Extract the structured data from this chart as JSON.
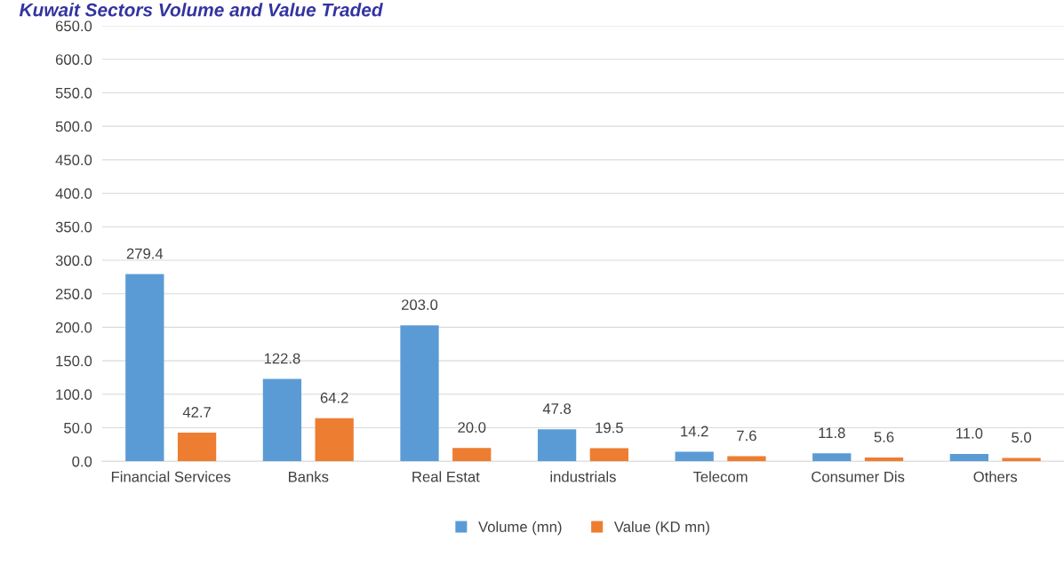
{
  "chart_data": {
    "type": "bar",
    "title": "Kuwait Sectors Volume and Value Traded",
    "categories": [
      "Financial Services",
      "Banks",
      "Real Estat",
      "industrials",
      "Telecom",
      "Consumer Dis",
      "Others"
    ],
    "series": [
      {
        "name": "Volume (mn)",
        "color": "#5b9bd5",
        "values": [
          279.4,
          122.8,
          203.0,
          47.8,
          14.2,
          11.8,
          11.0
        ],
        "value_labels": [
          "279.4",
          "122.8",
          "203.0",
          "47.8",
          "14.2",
          "11.8",
          "11.0"
        ]
      },
      {
        "name": "Value (KD mn)",
        "color": "#ed7d31",
        "values": [
          42.7,
          64.2,
          20.0,
          19.5,
          7.6,
          5.6,
          5.0
        ],
        "value_labels": [
          "42.7",
          "64.2",
          "20.0",
          "19.5",
          "7.6",
          "5.6",
          "5.0"
        ]
      }
    ],
    "ylim": [
      0,
      650
    ],
    "yticks": [
      {
        "value": 0,
        "label": "0.0"
      },
      {
        "value": 50,
        "label": "50.0"
      },
      {
        "value": 100,
        "label": "100.0"
      },
      {
        "value": 150,
        "label": "150.0"
      },
      {
        "value": 200,
        "label": "200.0"
      },
      {
        "value": 250,
        "label": "250.0"
      },
      {
        "value": 300,
        "label": "300.0"
      },
      {
        "value": 350,
        "label": "350.0"
      },
      {
        "value": 400,
        "label": "400.0"
      },
      {
        "value": 450,
        "label": "450.0"
      },
      {
        "value": 500,
        "label": "500.0"
      },
      {
        "value": 550,
        "label": "550.0"
      },
      {
        "value": 600,
        "label": "600.0"
      },
      {
        "value": 650,
        "label": "650.0"
      }
    ],
    "grid": "y",
    "legend": "bottom"
  }
}
